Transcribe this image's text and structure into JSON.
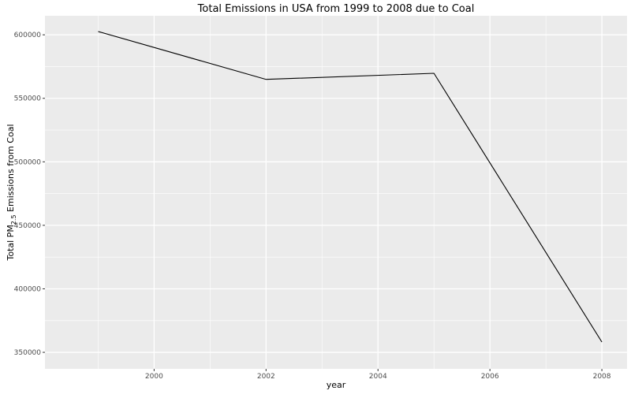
{
  "chart_data": {
    "type": "line",
    "title": "Total Emissions in USA from 1999 to 2008 due to Coal",
    "xlabel": "year",
    "ylabel": {
      "prefix": "Total PM",
      "subscript": "2.5",
      "suffix": " Emissions from Coal"
    },
    "xlim": [
      1998.05,
      2008.45
    ],
    "ylim": [
      337000,
      615000
    ],
    "xticks": [
      2000,
      2002,
      2004,
      2006,
      2008
    ],
    "yticks": [
      350000,
      400000,
      450000,
      500000,
      550000,
      600000
    ],
    "x": [
      1999,
      2002,
      2005,
      2008
    ],
    "series": [
      {
        "values": [
          602600,
          564900,
          569700,
          358100
        ],
        "color": "#000000"
      }
    ],
    "grid": true,
    "panel_background": "#ebebeb",
    "grid_major_color": "#ffffff"
  }
}
